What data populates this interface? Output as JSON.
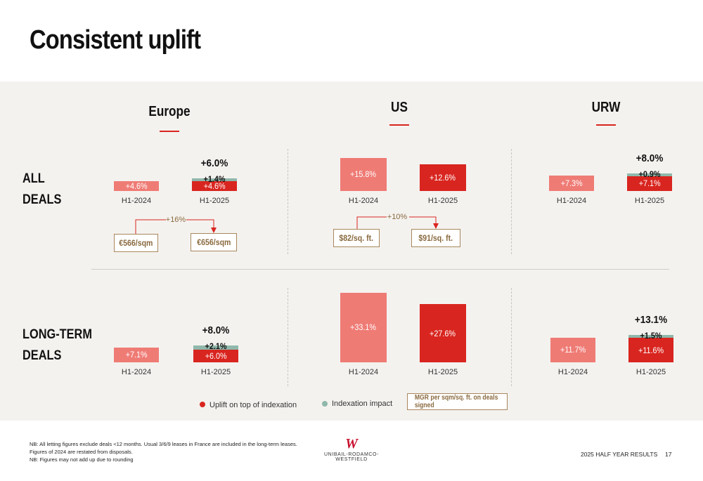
{
  "slide": {
    "title": "Consistent uplift"
  },
  "regions": [
    {
      "key": "europe",
      "title": "Europe"
    },
    {
      "key": "us",
      "title": "US"
    },
    {
      "key": "urw",
      "title": "URW"
    }
  ],
  "rows": [
    {
      "key": "all",
      "label_line1": "ALL",
      "label_line2": "DEALS"
    },
    {
      "key": "long",
      "label_line1": "LONG-TERM",
      "label_line2": "DEALS"
    }
  ],
  "chart_data": {
    "type": "bar",
    "categories": [
      "H1-2024",
      "H1-2025"
    ],
    "panels": [
      {
        "region": "Europe",
        "row": "ALL DEALS",
        "h1_2024": {
          "uplift": 4.6,
          "label": "+4.6%"
        },
        "h1_2025": {
          "uplift": 4.6,
          "uplift_label": "+4.6%",
          "indexation": 1.4,
          "indexation_label": "+1.4%",
          "total_label": "+6.0%"
        }
      },
      {
        "region": "US",
        "row": "ALL DEALS",
        "h1_2024": {
          "uplift": 15.8,
          "label": "+15.8%"
        },
        "h1_2025": {
          "uplift": 12.6,
          "uplift_label": "+12.6%"
        }
      },
      {
        "region": "URW",
        "row": "ALL DEALS",
        "h1_2024": {
          "uplift": 7.3,
          "label": "+7.3%"
        },
        "h1_2025": {
          "uplift": 7.1,
          "uplift_label": "+7.1%",
          "indexation": 0.9,
          "indexation_label": "+0.9%",
          "total_label": "+8.0%"
        }
      },
      {
        "region": "Europe",
        "row": "LONG-TERM DEALS",
        "h1_2024": {
          "uplift": 7.1,
          "label": "+7.1%"
        },
        "h1_2025": {
          "uplift": 6.0,
          "uplift_label": "+6.0%",
          "indexation": 2.1,
          "indexation_label": "+2.1%",
          "total_label": "+8.0%"
        }
      },
      {
        "region": "US",
        "row": "LONG-TERM DEALS",
        "h1_2024": {
          "uplift": 33.1,
          "label": "+33.1%"
        },
        "h1_2025": {
          "uplift": 27.6,
          "uplift_label": "+27.6%"
        }
      },
      {
        "region": "URW",
        "row": "LONG-TERM DEALS",
        "h1_2024": {
          "uplift": 11.7,
          "label": "+11.7%"
        },
        "h1_2025": {
          "uplift": 11.6,
          "uplift_label": "+11.6%",
          "indexation": 1.5,
          "indexation_label": "+1.5%",
          "total_label": "+13.1%"
        }
      }
    ],
    "mgr": [
      {
        "region": "Europe",
        "h1_2024": "€566/sqm",
        "h1_2025": "€656/sqm",
        "growth": "+16%"
      },
      {
        "region": "US",
        "h1_2024": "$82/sq. ft.",
        "h1_2025": "$91/sq. ft.",
        "growth": "+10%"
      }
    ],
    "colors": {
      "h1_2024": "#ef7b75",
      "h1_2025": "#d9251f",
      "indexation": "#8fb8ab",
      "mgr": "#a8875c"
    }
  },
  "legend": {
    "uplift": "Uplift on top of indexation",
    "indexation": "Indexation impact",
    "mgr": "MGR per sqm/sq. ft. on deals signed"
  },
  "footer": {
    "note1": "NB: All letting figures exclude deals <12 months. Usual 3/6/9 leases in France are included in the long-term leases.",
    "note2": "Figures of 2024 are restated from disposals.",
    "note3": "NB: Figures may not add up due to rounding",
    "logo_mark": "W",
    "logo_text": "UNIBAIL-RODAMCO-WESTFIELD",
    "report": "2025 HALF YEAR RESULTS",
    "page": "17"
  }
}
